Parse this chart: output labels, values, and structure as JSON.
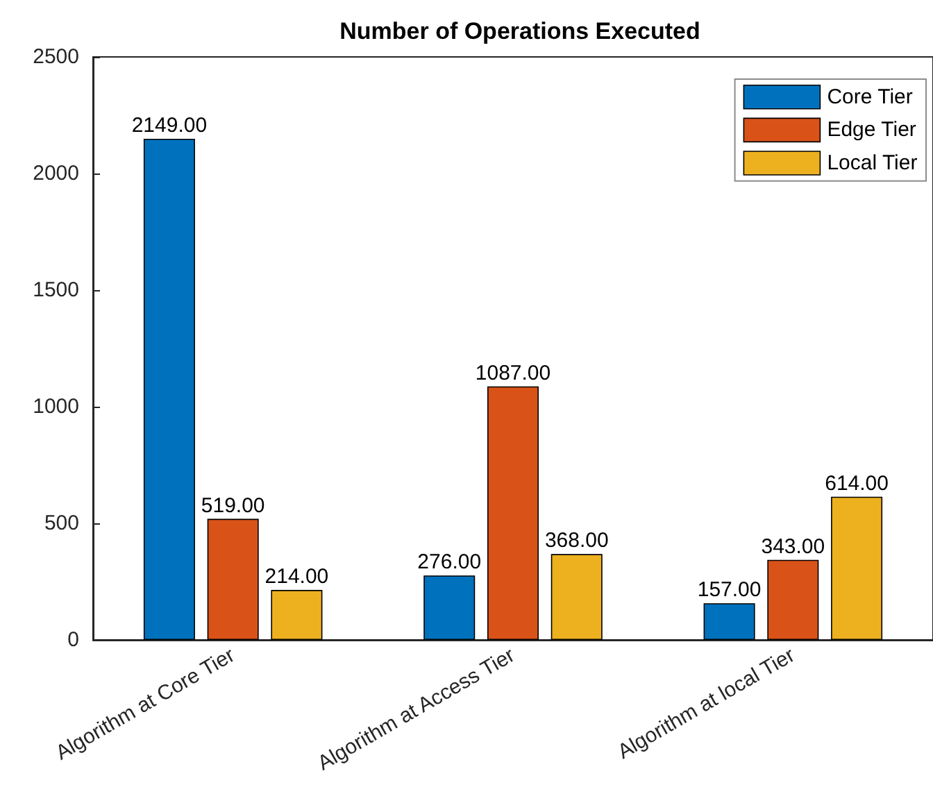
{
  "chart_data": {
    "type": "bar",
    "title": "Number of Operations Executed",
    "categories": [
      "Algorithm at Core Tier",
      "Algorithm at Access Tier",
      "Algorithm at local Tier"
    ],
    "series": [
      {
        "name": "Core Tier",
        "color": "#0072bd",
        "values": [
          2149,
          276,
          157
        ],
        "value_labels": [
          "2149.00",
          "276.00",
          "157.00"
        ]
      },
      {
        "name": "Edge Tier",
        "color": "#d95319",
        "values": [
          519,
          1087,
          343
        ],
        "value_labels": [
          "519.00",
          "1087.00",
          "343.00"
        ]
      },
      {
        "name": "Local Tier",
        "color": "#edb120",
        "values": [
          214,
          368,
          614
        ],
        "value_labels": [
          "214.00",
          "368.00",
          "614.00"
        ]
      }
    ],
    "ylim": [
      0,
      2500
    ],
    "yticks": [
      0,
      500,
      1000,
      1500,
      2000,
      2500
    ],
    "legend": "top right"
  }
}
